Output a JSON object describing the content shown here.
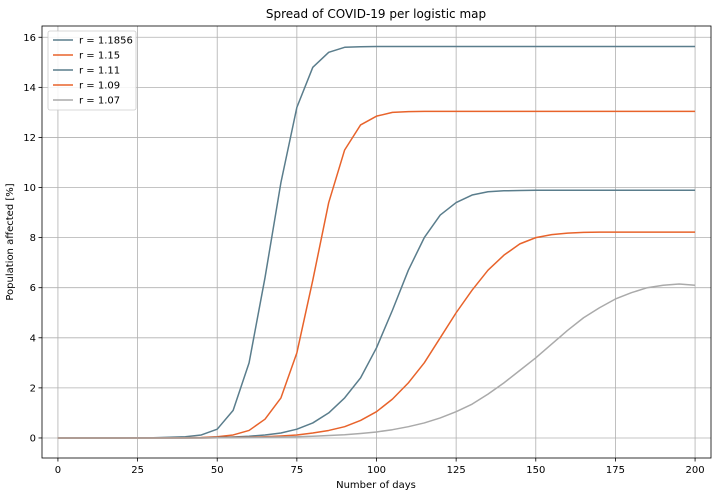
{
  "chart_data": {
    "type": "line",
    "title": "Spread of COVID-19 per logistic map",
    "xlabel": "Number of days",
    "ylabel": "Population affected [%]",
    "xlim": [
      -5,
      205
    ],
    "ylim": [
      -0.8,
      16.45
    ],
    "xticks": [
      0,
      25,
      50,
      75,
      100,
      125,
      150,
      175,
      200
    ],
    "yticks": [
      0,
      2,
      4,
      6,
      8,
      10,
      12,
      14,
      16
    ],
    "grid": true,
    "legend_position": "top-left",
    "x": [
      0,
      10,
      20,
      30,
      40,
      45,
      50,
      55,
      60,
      65,
      70,
      75,
      80,
      85,
      90,
      95,
      100,
      105,
      110,
      115,
      120,
      125,
      130,
      135,
      140,
      145,
      150,
      155,
      160,
      165,
      170,
      175,
      180,
      185,
      190,
      195,
      200
    ],
    "series": [
      {
        "name": "r = 1.1856",
        "color": "#5a7d8c",
        "values": [
          0.0,
          0.0,
          0.0,
          0.01,
          0.05,
          0.12,
          0.35,
          1.1,
          3.0,
          6.4,
          10.2,
          13.2,
          14.8,
          15.4,
          15.6,
          15.62,
          15.63,
          15.63,
          15.63,
          15.63,
          15.63,
          15.63,
          15.63,
          15.63,
          15.63,
          15.63,
          15.63,
          15.63,
          15.63,
          15.63,
          15.63,
          15.63,
          15.63,
          15.63,
          15.63,
          15.63,
          15.63
        ]
      },
      {
        "name": "r = 1.15",
        "color": "#e8632b",
        "values": [
          0.0,
          0.0,
          0.0,
          0.0,
          0.01,
          0.02,
          0.05,
          0.12,
          0.3,
          0.75,
          1.6,
          3.4,
          6.3,
          9.4,
          11.5,
          12.5,
          12.85,
          13.0,
          13.03,
          13.04,
          13.04,
          13.04,
          13.04,
          13.04,
          13.04,
          13.04,
          13.04,
          13.04,
          13.04,
          13.04,
          13.04,
          13.04,
          13.04,
          13.04,
          13.04,
          13.04,
          13.04
        ]
      },
      {
        "name": "r = 1.11",
        "color": "#5a7d8c",
        "values": [
          0.0,
          0.0,
          0.0,
          0.0,
          0.0,
          0.01,
          0.02,
          0.04,
          0.07,
          0.12,
          0.2,
          0.35,
          0.6,
          1.0,
          1.6,
          2.4,
          3.6,
          5.1,
          6.7,
          8.0,
          8.9,
          9.4,
          9.7,
          9.83,
          9.87,
          9.88,
          9.89,
          9.89,
          9.89,
          9.89,
          9.89,
          9.89,
          9.89,
          9.89,
          9.89,
          9.89,
          9.89
        ]
      },
      {
        "name": "r = 1.09",
        "color": "#e8632b",
        "values": [
          0.0,
          0.0,
          0.0,
          0.0,
          0.0,
          0.0,
          0.01,
          0.02,
          0.03,
          0.05,
          0.08,
          0.12,
          0.2,
          0.3,
          0.45,
          0.7,
          1.05,
          1.55,
          2.2,
          3.0,
          4.0,
          5.0,
          5.9,
          6.7,
          7.3,
          7.75,
          8.0,
          8.12,
          8.18,
          8.21,
          8.22,
          8.22,
          8.22,
          8.22,
          8.22,
          8.22,
          8.22
        ]
      },
      {
        "name": "r = 1.07",
        "color": "#aaaaaa",
        "values": [
          0.0,
          0.0,
          0.0,
          0.0,
          0.0,
          0.0,
          0.01,
          0.01,
          0.02,
          0.03,
          0.04,
          0.05,
          0.07,
          0.1,
          0.13,
          0.18,
          0.24,
          0.33,
          0.45,
          0.6,
          0.8,
          1.05,
          1.35,
          1.75,
          2.2,
          2.7,
          3.2,
          3.75,
          4.3,
          4.8,
          5.2,
          5.55,
          5.8,
          6.0,
          6.1,
          6.15,
          6.1
        ]
      }
    ]
  }
}
